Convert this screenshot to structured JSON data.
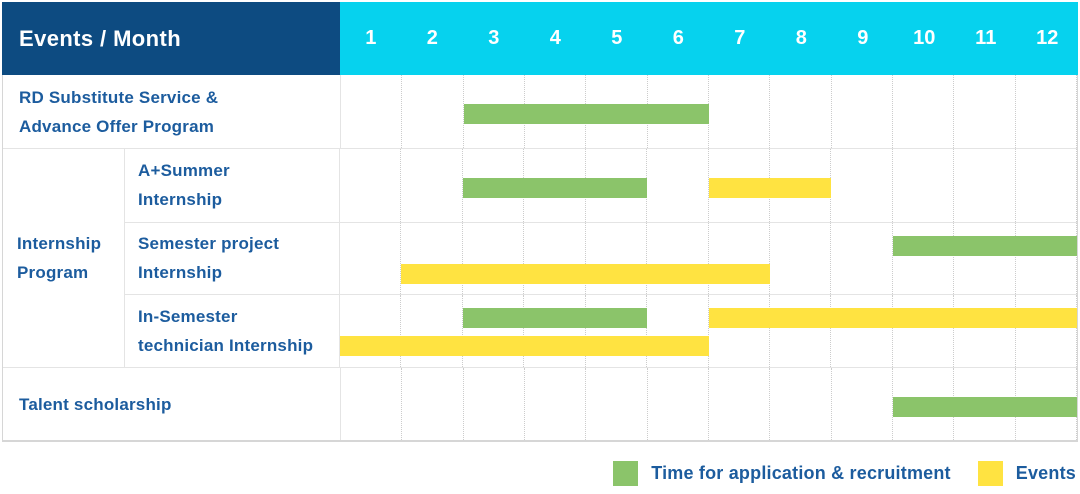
{
  "header": {
    "title": "Events / Month",
    "months": [
      "1",
      "2",
      "3",
      "4",
      "5",
      "6",
      "7",
      "8",
      "9",
      "10",
      "11",
      "12"
    ]
  },
  "group": {
    "label_lines": [
      "Internship",
      "Program"
    ]
  },
  "rows": [
    {
      "key": "rd-substitute-advance-offer",
      "label_lines": [
        "RD Substitute Service &",
        "Advance Offer Program"
      ],
      "group": null,
      "bars": [
        {
          "color": "green",
          "start_month": 3,
          "end_month": 6,
          "lane": "single"
        }
      ]
    },
    {
      "key": "a-plus-summer-internship",
      "label_lines": [
        "A+Summer",
        "Internship"
      ],
      "group": "Internship Program",
      "bars": [
        {
          "color": "green",
          "start_month": 3,
          "end_month": 5,
          "lane": "single"
        },
        {
          "color": "yellow",
          "start_month": 7,
          "end_month": 8,
          "lane": "single"
        }
      ]
    },
    {
      "key": "semester-project-internship",
      "label_lines": [
        "Semester project",
        "Internship"
      ],
      "group": "Internship Program",
      "bars": [
        {
          "color": "green",
          "start_month": 10,
          "end_month": 12,
          "lane": "top"
        },
        {
          "color": "yellow",
          "start_month": 2,
          "end_month": 7,
          "lane": "bottom"
        }
      ]
    },
    {
      "key": "in-semester-technician-internship",
      "label_lines": [
        "In-Semester",
        "technician Internship"
      ],
      "group": "Internship Program",
      "bars": [
        {
          "color": "green",
          "start_month": 3,
          "end_month": 5,
          "lane": "top"
        },
        {
          "color": "yellow",
          "start_month": 7,
          "end_month": 12,
          "lane": "top"
        },
        {
          "color": "yellow",
          "start_month": 1,
          "end_month": 6,
          "lane": "bottom"
        }
      ]
    },
    {
      "key": "talent-scholarship",
      "label_lines": [
        "Talent scholarship"
      ],
      "group": null,
      "bars": [
        {
          "color": "green",
          "start_month": 10,
          "end_month": 12,
          "lane": "single"
        }
      ]
    }
  ],
  "legend": {
    "items": [
      {
        "color": "green",
        "label": "Time for application & recruitment"
      },
      {
        "color": "yellow",
        "label": "Events"
      }
    ]
  },
  "colors": {
    "header_navy": "#0D4B81",
    "header_cyan": "#06D2EE",
    "bar_green": "#8BC46A",
    "bar_yellow": "#FFE341",
    "text_blue": "#1C5C9E",
    "grid_line": "#E4E4E4",
    "grid_dotted": "#CCCCCC",
    "border_outer": "#D6D6D6",
    "header_text": "#FFFFFF"
  },
  "chart_data": {
    "type": "bar",
    "variant": "gantt-schedule-table",
    "title": "Events / Month",
    "xlabel": "Month",
    "x_ticks": [
      1,
      2,
      3,
      4,
      5,
      6,
      7,
      8,
      9,
      10,
      11,
      12
    ],
    "x_range": [
      1,
      12
    ],
    "grid": "dotted vertical month separators, solid row separators",
    "legend_position": "bottom-right",
    "series_legend": [
      "Time for application & recruitment",
      "Events"
    ],
    "rows": [
      {
        "label": "RD Substitute Service & Advance Offer Program",
        "group": null,
        "spans": [
          {
            "series": "Time for application & recruitment",
            "color": "green",
            "months": [
              3,
              6
            ]
          }
        ]
      },
      {
        "label": "A+Summer Internship",
        "group": "Internship Program",
        "spans": [
          {
            "series": "Time for application & recruitment",
            "color": "green",
            "months": [
              3,
              5
            ]
          },
          {
            "series": "Events",
            "color": "yellow",
            "months": [
              7,
              8
            ]
          }
        ]
      },
      {
        "label": "Semester project Internship",
        "group": "Internship Program",
        "spans": [
          {
            "series": "Time for application & recruitment",
            "color": "green",
            "months": [
              10,
              12
            ]
          },
          {
            "series": "Events",
            "color": "yellow",
            "months": [
              2,
              7
            ]
          }
        ]
      },
      {
        "label": "In-Semester technician Internship",
        "group": "Internship Program",
        "spans": [
          {
            "series": "Time for application & recruitment",
            "color": "green",
            "months": [
              3,
              5
            ]
          },
          {
            "series": "Events",
            "color": "yellow",
            "months": [
              7,
              12
            ]
          },
          {
            "series": "Events",
            "color": "yellow",
            "months": [
              1,
              6
            ]
          }
        ]
      },
      {
        "label": "Talent scholarship",
        "group": null,
        "spans": [
          {
            "series": "Time for application & recruitment",
            "color": "green",
            "months": [
              10,
              12
            ]
          }
        ]
      }
    ]
  }
}
